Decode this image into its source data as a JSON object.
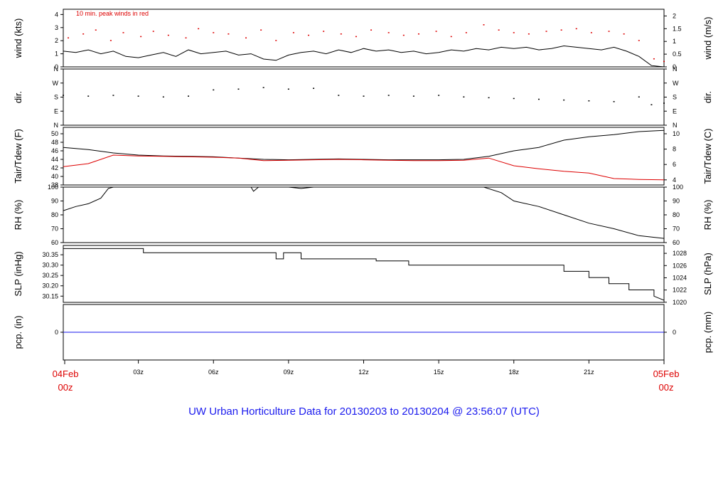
{
  "chart_data": [
    {
      "type": "line",
      "name": "wind",
      "ylabel": "wind (kts)",
      "y2label": "wind (m/s)",
      "ylim": [
        0,
        4.4
      ],
      "yticks": [
        "0",
        "1",
        "2",
        "3",
        "4"
      ],
      "y2ticks": [
        "0",
        "0.5",
        "1",
        "1.5",
        "2"
      ],
      "y2tick_values": [
        0,
        0.5,
        1,
        1.5,
        2
      ],
      "annotation": "10 min. peak winds in red",
      "series": [
        {
          "color": "#000000",
          "x": [
            0,
            0.5,
            1,
            1.5,
            2,
            2.5,
            3,
            3.5,
            4,
            4.5,
            5,
            5.5,
            6,
            6.5,
            7,
            7.5,
            8,
            8.5,
            9,
            9.5,
            10,
            10.5,
            11,
            11.5,
            12,
            12.5,
            13,
            13.5,
            14,
            14.5,
            15,
            15.5,
            16,
            16.5,
            17,
            17.5,
            18,
            18.5,
            19,
            19.5,
            20,
            20.5,
            21,
            21.5,
            22,
            22.5,
            23,
            23.5,
            24
          ],
          "y": [
            1.2,
            1.1,
            1.3,
            1.0,
            1.2,
            0.8,
            0.7,
            0.9,
            1.1,
            0.8,
            1.3,
            1.0,
            1.1,
            1.2,
            0.9,
            1.0,
            0.6,
            0.5,
            0.9,
            1.1,
            1.2,
            1.0,
            1.3,
            1.1,
            1.4,
            1.2,
            1.3,
            1.1,
            1.2,
            1.0,
            1.1,
            1.3,
            1.2,
            1.4,
            1.3,
            1.5,
            1.4,
            1.5,
            1.3,
            1.4,
            1.6,
            1.5,
            1.4,
            1.3,
            1.5,
            1.2,
            0.8,
            0.1,
            0.0
          ]
        },
        {
          "color": "#dd0000",
          "marker": "dot",
          "x": [
            0.2,
            0.8,
            1.3,
            1.9,
            2.4,
            3.1,
            3.6,
            4.2,
            4.9,
            5.4,
            6.0,
            6.6,
            7.3,
            7.9,
            8.5,
            9.2,
            9.8,
            10.4,
            11.1,
            11.7,
            12.3,
            13.0,
            13.6,
            14.2,
            14.9,
            15.5,
            16.1,
            16.8,
            17.4,
            18.0,
            18.6,
            19.3,
            19.9,
            20.5,
            21.1,
            21.8,
            22.4,
            23.0,
            23.6,
            24.0
          ],
          "y": [
            2.2,
            2.5,
            2.8,
            2.0,
            2.6,
            2.3,
            2.7,
            2.4,
            2.2,
            2.9,
            2.6,
            2.5,
            2.2,
            2.8,
            2.0,
            2.6,
            2.4,
            2.7,
            2.5,
            2.3,
            2.8,
            2.6,
            2.4,
            2.5,
            2.7,
            2.3,
            2.6,
            3.2,
            2.8,
            2.6,
            2.5,
            2.7,
            2.8,
            2.9,
            2.6,
            2.7,
            2.5,
            2.0,
            0.6,
            0.4
          ]
        }
      ]
    },
    {
      "type": "scatter",
      "name": "direction",
      "ylabel": "dir.",
      "y2label": "dir.",
      "ylim": [
        0,
        360
      ],
      "yticks": [
        "N",
        "E",
        "S",
        "W",
        "N"
      ],
      "y2ticks": [
        "N",
        "E",
        "S",
        "W",
        "N"
      ],
      "series": [
        {
          "color": "#000000",
          "x": [
            0,
            1,
            2,
            3,
            4,
            5,
            6,
            7,
            8,
            9,
            10,
            11,
            12,
            13,
            14,
            15,
            16,
            17,
            18,
            19,
            20,
            21,
            22,
            23,
            23.5,
            24
          ],
          "y": [
            190,
            185,
            190,
            185,
            180,
            185,
            225,
            230,
            240,
            230,
            235,
            190,
            185,
            190,
            185,
            190,
            180,
            175,
            170,
            165,
            160,
            155,
            150,
            180,
            130,
            140
          ]
        }
      ]
    },
    {
      "type": "line",
      "name": "temperature",
      "ylabel": "Tair/Tdew (F)",
      "y2label": "Tair/Tdew (C)",
      "ylim": [
        38,
        51.5
      ],
      "yticks": [
        "38",
        "40",
        "42",
        "44",
        "46",
        "48",
        "50"
      ],
      "y2ticks": [
        "4",
        "6",
        "8",
        "10"
      ],
      "y2tick_values": [
        4,
        6,
        8,
        10
      ],
      "series": [
        {
          "color": "#000000",
          "x": [
            0,
            1,
            2,
            3,
            4,
            5,
            6,
            7,
            8,
            9,
            10,
            11,
            12,
            13,
            14,
            15,
            16,
            17,
            18,
            19,
            20,
            21,
            22,
            23,
            24
          ],
          "y": [
            46.8,
            46.3,
            45.5,
            45.0,
            44.8,
            44.7,
            44.6,
            44.3,
            44.0,
            43.9,
            44.0,
            44.1,
            44.0,
            43.9,
            43.9,
            43.9,
            44.0,
            44.7,
            46.0,
            46.8,
            48.5,
            49.3,
            49.8,
            50.5,
            50.8
          ]
        },
        {
          "color": "#dd0000",
          "x": [
            0,
            1,
            2,
            3,
            4,
            5,
            6,
            7,
            8,
            9,
            10,
            11,
            12,
            13,
            14,
            15,
            16,
            17,
            18,
            19,
            20,
            21,
            22,
            23,
            24
          ],
          "y": [
            42.3,
            43.0,
            45.0,
            44.8,
            44.7,
            44.6,
            44.5,
            44.3,
            43.7,
            43.8,
            43.9,
            44.0,
            43.9,
            43.8,
            43.7,
            43.7,
            43.8,
            44.3,
            42.5,
            41.8,
            41.2,
            40.8,
            39.5,
            39.3,
            39.2
          ]
        }
      ]
    },
    {
      "type": "line",
      "name": "humidity",
      "ylabel": "RH (%)",
      "y2label": "RH (%)",
      "ylim": [
        60,
        100
      ],
      "yticks": [
        "60",
        "70",
        "80",
        "90",
        "100"
      ],
      "y2ticks": [
        "60",
        "70",
        "80",
        "90",
        "100"
      ],
      "y2tick_values": [
        60,
        70,
        80,
        90,
        100
      ],
      "series": [
        {
          "color": "#000000",
          "x": [
            0,
            0.5,
            1,
            1.5,
            1.8,
            2,
            3,
            4,
            5,
            6,
            7,
            7.5,
            7.6,
            7.8,
            8,
            9,
            9.5,
            10,
            11,
            12,
            13,
            14,
            15,
            16,
            16.8,
            17.5,
            18,
            19,
            20,
            21,
            22,
            23,
            24
          ],
          "y": [
            83,
            86,
            88,
            92,
            99,
            100,
            100,
            100,
            100,
            100,
            100,
            100,
            97,
            100,
            100,
            100,
            99,
            100,
            100,
            100,
            100,
            100,
            100,
            100,
            100,
            96,
            90,
            86,
            80,
            74,
            70,
            65,
            63
          ]
        }
      ]
    },
    {
      "type": "line",
      "name": "pressure",
      "ylabel": "SLP (inHg)",
      "y2label": "SLP (hPa)",
      "ylim": [
        30.12,
        30.395
      ],
      "yticks": [
        "30.15",
        "30.20",
        "30.25",
        "30.30",
        "30.35"
      ],
      "y2ticks": [
        "1020",
        "1022",
        "1024",
        "1026",
        "1028"
      ],
      "y2tick_values": [
        1020,
        1022,
        1024,
        1026,
        1028
      ],
      "series": [
        {
          "color": "#000000",
          "x": [
            0,
            3.2,
            3.2,
            8.5,
            8.5,
            8.8,
            8.8,
            9.5,
            9.5,
            10,
            10,
            12.5,
            12.5,
            13.8,
            13.8,
            14.3,
            14.3,
            17,
            17,
            20,
            20,
            21,
            21,
            21.8,
            21.8,
            22.6,
            22.6,
            23.6,
            23.6,
            24
          ],
          "y": [
            30.38,
            30.38,
            30.36,
            30.36,
            30.33,
            30.33,
            30.36,
            30.36,
            30.33,
            30.33,
            30.33,
            30.33,
            30.32,
            30.32,
            30.3,
            30.3,
            30.3,
            30.3,
            30.3,
            30.3,
            30.27,
            30.27,
            30.24,
            30.24,
            30.21,
            30.21,
            30.18,
            30.18,
            30.15,
            30.13
          ]
        }
      ]
    },
    {
      "type": "line",
      "name": "precipitation",
      "ylabel": "pcp. (in)",
      "y2label": "pcp. (mm)",
      "ylim": [
        -0.5,
        0.5
      ],
      "yticks": [
        "0"
      ],
      "y2ticks": [
        "0"
      ],
      "series": [
        {
          "color": "#1a1aee",
          "x": [
            0,
            24
          ],
          "y": [
            0,
            0
          ]
        }
      ]
    }
  ],
  "time_axis": {
    "xlim": [
      0,
      24
    ],
    "ticks": [
      {
        "hour": 3,
        "label": "03z"
      },
      {
        "hour": 6,
        "label": "06z"
      },
      {
        "hour": 9,
        "label": "09z"
      },
      {
        "hour": 12,
        "label": "12z"
      },
      {
        "hour": 15,
        "label": "15z"
      },
      {
        "hour": 18,
        "label": "18z"
      },
      {
        "hour": 21,
        "label": "21z"
      }
    ],
    "start_date": "04Feb",
    "start_time": "00z",
    "end_date": "05Feb",
    "end_time": "00z"
  },
  "footer": "UW Urban Horticulture Data for 20130203  to  20130204 @ 23:56:07  (UTC)"
}
